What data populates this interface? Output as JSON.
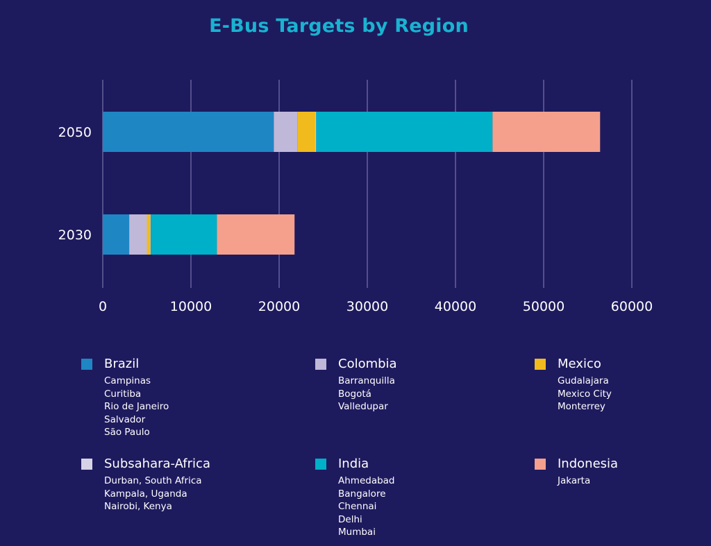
{
  "chart_data": {
    "type": "bar",
    "orientation": "horizontal",
    "stacked": true,
    "title": "E-Bus Targets by Region",
    "categories": [
      "2050",
      "2030"
    ],
    "xlim": [
      0,
      60000
    ],
    "xticks": [
      "0",
      "10000",
      "20000",
      "30000",
      "40000",
      "50000",
      "60000"
    ],
    "grid": true,
    "legend_position": "bottom",
    "series": [
      {
        "name": "Brazil",
        "color": "#1f86c4",
        "values": [
          19400,
          3000
        ],
        "cities": [
          "Campinas",
          "Curitiba",
          "Rio de Janeiro",
          "Salvador",
          "São Paulo"
        ]
      },
      {
        "name": "Colombia",
        "color": "#c0b8d8",
        "values": [
          2700,
          2000
        ],
        "cities": [
          "Barranquilla",
          "Bogotá",
          "Valledupar"
        ]
      },
      {
        "name": "Mexico",
        "color": "#f2bb1d",
        "values": [
          2000,
          400
        ],
        "cities": [
          "Gudalajara",
          "Mexico City",
          "Monterrey"
        ]
      },
      {
        "name": "Subsahara-Africa",
        "color": "#d6d3e6",
        "values": [
          100,
          50
        ],
        "cities": [
          "Durban, South Africa",
          "Kampala, Uganda",
          "Nairobi, Kenya"
        ]
      },
      {
        "name": "India",
        "color": "#00afc8",
        "values": [
          20000,
          7500
        ],
        "cities": [
          "Ahmedabad",
          "Bangalore",
          "Chennai",
          "Delhi",
          "Mumbai"
        ]
      },
      {
        "name": "Indonesia",
        "color": "#f4a08c",
        "values": [
          12200,
          8800
        ],
        "cities": [
          "Jakarta"
        ]
      }
    ]
  }
}
